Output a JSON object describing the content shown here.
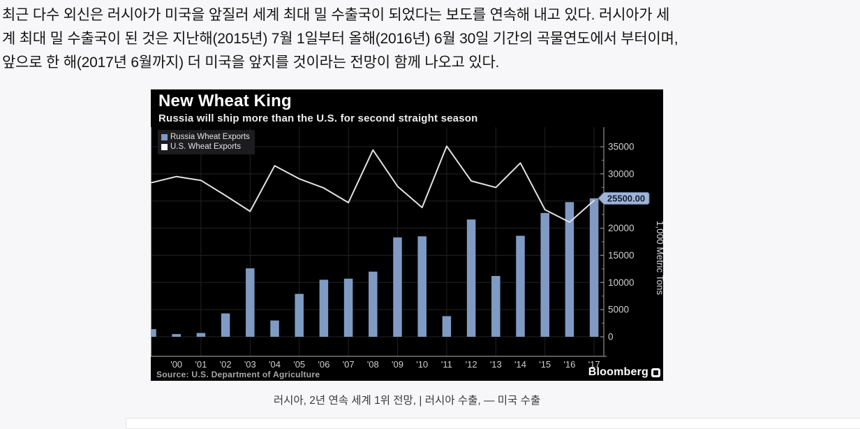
{
  "article": {
    "lines": [
      "최근 다수 외신은 러시아가 미국을 앞질러 세계 최대 밀 수출국이 되었다는 보도를 연속해 내고 있다. 러시아가 세",
      "계 최대 밀 수출국이 된 것은 지난해(2015년) 7월 1일부터 올해(2016년) 6월 30일 기간의 곡물연도에서 부터이며,",
      "앞으로 한 해(2017년 6월까지) 더 미국을 앞지를 것이라는 전망이 함께 나오고 있다."
    ]
  },
  "chart_data": {
    "type": "bar+line",
    "title": "New Wheat King",
    "subtitle": "Russia will ship more than the U.S. for second straight season",
    "ylabel": "1,000 Metric Tons",
    "ylim": [
      0,
      35000
    ],
    "ytick_step": 5000,
    "ytick_minor_step": 2500,
    "grid": true,
    "legend_position": "top-left",
    "categories": [
      "",
      "'00",
      "'01",
      "'02",
      "'03",
      "'04",
      "'05",
      "'06",
      "'07",
      "'08",
      "'09",
      "'10",
      "'11",
      "'12",
      "'13",
      "'14",
      "'15",
      "'16",
      "'17"
    ],
    "series": [
      {
        "name": "Russia Wheat Exports",
        "type": "bar",
        "color": "#7f9bc4",
        "values": [
          1400,
          500,
          700,
          4300,
          12600,
          3000,
          7900,
          10500,
          10700,
          12000,
          18300,
          18500,
          3800,
          21600,
          11200,
          18600,
          22800,
          24800,
          25500
        ]
      },
      {
        "name": "U.S. Wheat Exports",
        "type": "line",
        "color": "#e2e2e2",
        "legend_color": "#ffffff",
        "values": [
          28400,
          29500,
          28800,
          26000,
          23100,
          31500,
          29100,
          27400,
          24700,
          34400,
          27700,
          23800,
          35100,
          28700,
          27500,
          32000,
          23400,
          21100,
          25100
        ]
      }
    ],
    "badge": {
      "text": "25500.00",
      "value": 25500,
      "fill": "#9fb4d6",
      "border": "#5a6f94",
      "text_color": "#131f36"
    },
    "hidden_ytick": 25000,
    "source": "Source: U.S. Department of Agriculture",
    "brand": "Bloomberg",
    "colors": {
      "background": "#000000",
      "grid": "#232323",
      "axis": "#8f8f8f",
      "tick_label": "#cfcfcf",
      "axis_title": "#d8d8d8"
    }
  },
  "caption": {
    "text": "러시아, 2년 연속 세계 1위 전망,  | 러시아 수출, — 미국 수출"
  }
}
